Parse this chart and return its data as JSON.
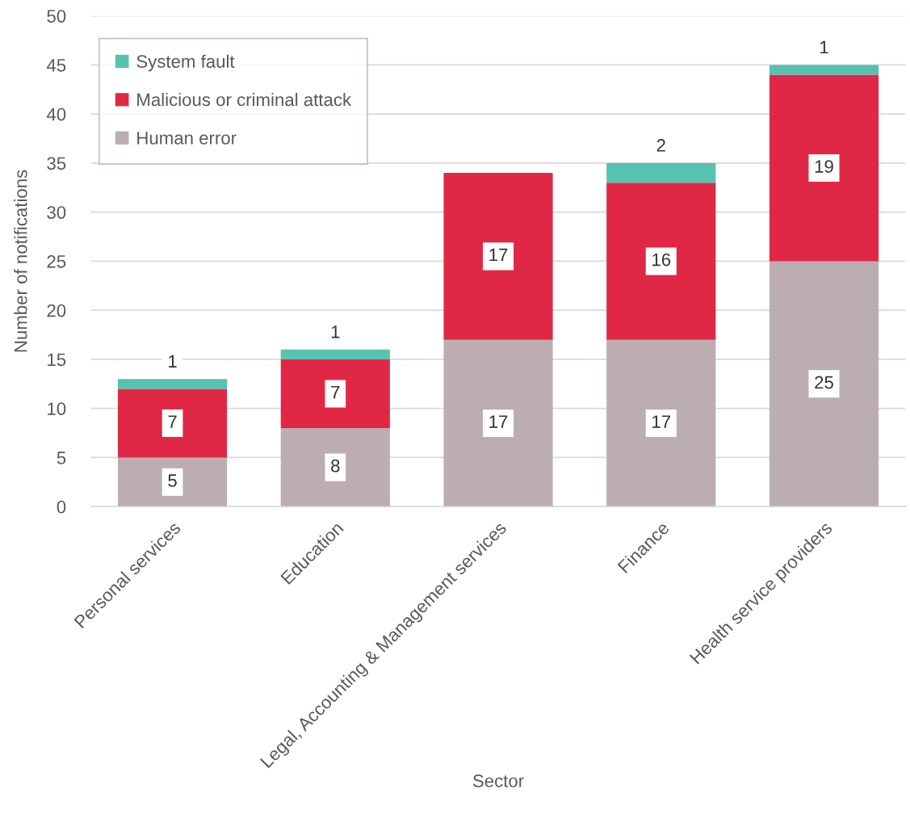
{
  "chart_data": {
    "type": "bar",
    "stacked": true,
    "xlabel": "Sector",
    "ylabel": "Number of notifications",
    "categories": [
      "Personal services",
      "Education",
      "Legal, Accounting & Management services",
      "Finance",
      "Health service providers"
    ],
    "series": [
      {
        "name": "Human error",
        "color": "#bcaeb0",
        "values": [
          5,
          8,
          17,
          17,
          25
        ]
      },
      {
        "name": "Malicious or criminal attack",
        "color": "#e02846",
        "values": [
          7,
          7,
          17,
          16,
          19
        ]
      },
      {
        "name": "System fault",
        "color": "#56c2b0",
        "values": [
          1,
          1,
          null,
          2,
          1
        ]
      }
    ],
    "ylim": [
      0,
      50
    ],
    "yticks": [
      0,
      5,
      10,
      15,
      20,
      25,
      30,
      35,
      40,
      45,
      50
    ],
    "grid": "y",
    "legend": "top left",
    "data_labels": true
  }
}
